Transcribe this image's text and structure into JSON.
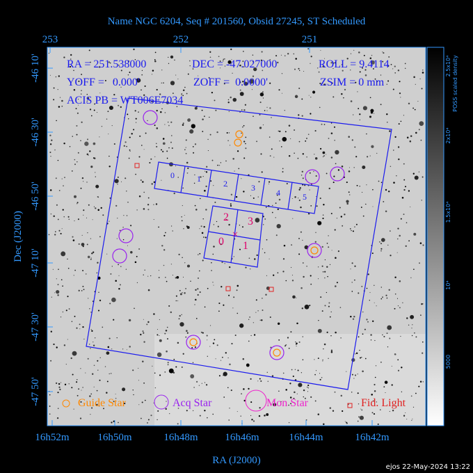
{
  "title": "Name NGC 6204, Seq # 201560, Obsid 27245, ST Scheduled",
  "axes": {
    "top_ticks": [
      "253",
      "252",
      "251"
    ],
    "bottom_ticks": [
      "16h52m",
      "16h50m",
      "16h48m",
      "16h46m",
      "16h44m",
      "16h42m"
    ],
    "left_ticks": [
      "-46 10'",
      "-46 30'",
      "-46 50'",
      "-47 10'",
      "-47 30'",
      "-47 50'"
    ],
    "x_label": "RA (J2000)",
    "y_label": "Dec (J2000)"
  },
  "info": [
    "RA = 251.538000",
    "DEC = -47.027000",
    "ROLL = 9.4114",
    "YOFF =   0.000'",
    "ZOFF =  0.0000'",
    "ZSIM = 0 mm",
    "ACIS PB = WT006E7034"
  ],
  "chips": {
    "s_array": [
      "0",
      "1",
      "2",
      "3",
      "4",
      "5"
    ],
    "i_array": [
      "0",
      "1",
      "2",
      "3"
    ]
  },
  "legend": [
    "Guide Star",
    "Acq Star",
    "Mon Star",
    "Fid. Light"
  ],
  "colorbar": {
    "title": "POSS scaled density",
    "ticks": [
      "2.5x10⁴",
      "2x10⁴",
      "1.5x10⁴",
      "10⁴",
      "5000"
    ]
  },
  "footer": "ejos 22-May-2024 13:22"
}
